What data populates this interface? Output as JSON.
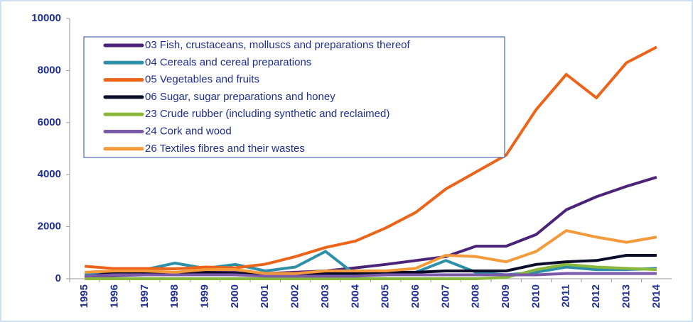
{
  "chart_data": {
    "type": "line",
    "categories": [
      "1995",
      "1996",
      "1997",
      "1998",
      "1999",
      "2000",
      "2001",
      "2002",
      "2003",
      "2004",
      "2005",
      "2006",
      "2007",
      "2008",
      "2009",
      "2010",
      "2011",
      "2012",
      "2013",
      "2014"
    ],
    "series": [
      {
        "name": "03 Fish, crustaceans, molluscs and preparations thereof",
        "color": "#4b2378",
        "values": [
          100,
          120,
          150,
          200,
          250,
          250,
          200,
          250,
          300,
          420,
          550,
          700,
          850,
          1250,
          1250,
          1700,
          2650,
          3150,
          3550,
          3900
        ]
      },
      {
        "name": "04 Cereals and cereal preparations",
        "color": "#2e8fa8",
        "values": [
          150,
          250,
          350,
          600,
          400,
          550,
          300,
          450,
          1050,
          150,
          200,
          250,
          700,
          250,
          150,
          250,
          450,
          350,
          350,
          400
        ]
      },
      {
        "name": "05 Vegetables and fruits",
        "color": "#ec6419",
        "values": [
          480,
          390,
          390,
          380,
          450,
          420,
          560,
          850,
          1200,
          1450,
          1950,
          2550,
          3450,
          4100,
          4750,
          6500,
          7850,
          6950,
          8300,
          8900
        ]
      },
      {
        "name": "06 Sugar, sugar preparations and honey",
        "color": "#0b0b2a",
        "values": [
          50,
          250,
          250,
          200,
          250,
          200,
          200,
          200,
          200,
          200,
          250,
          250,
          300,
          300,
          300,
          550,
          650,
          700,
          900,
          900
        ]
      },
      {
        "name": "23 Crude rubber (including synthetic and reclaimed)",
        "color": "#8ab83a",
        "values": [
          0,
          0,
          0,
          0,
          0,
          0,
          0,
          0,
          0,
          0,
          0,
          0,
          0,
          0,
          50,
          350,
          550,
          450,
          400,
          350
        ]
      },
      {
        "name": "24 Cork and wood",
        "color": "#7a5aa8",
        "values": [
          100,
          150,
          150,
          150,
          150,
          150,
          100,
          100,
          100,
          100,
          150,
          150,
          150,
          150,
          150,
          150,
          200,
          200,
          200,
          200
        ]
      },
      {
        "name": "26 Textiles fibres and their wastes",
        "color": "#f59a3a",
        "values": [
          250,
          300,
          300,
          250,
          350,
          350,
          200,
          200,
          300,
          300,
          300,
          400,
          900,
          850,
          650,
          1050,
          1850,
          1600,
          1400,
          1600
        ]
      }
    ],
    "ylim": [
      0,
      10000
    ],
    "yticks": [
      0,
      2000,
      4000,
      6000,
      8000,
      10000
    ],
    "grid": false,
    "legend": "upper left"
  }
}
